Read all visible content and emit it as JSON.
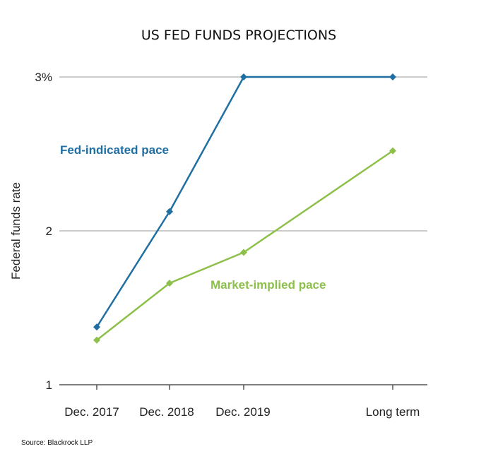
{
  "chart_data": {
    "type": "line",
    "title": "US FED FUNDS PROJECTIONS",
    "ylabel": "Federal funds rate",
    "xlabel": "",
    "categories": [
      "Dec. 2017",
      "Dec. 2018",
      "Dec. 2019",
      "Long term"
    ],
    "x_positions": [
      0,
      1,
      2,
      4
    ],
    "ylim": [
      1,
      3
    ],
    "yticks": [
      1,
      2,
      3
    ],
    "ytick_labels": [
      "1",
      "2",
      "3%"
    ],
    "grid": "horizontal",
    "legend": "inline labels",
    "series": [
      {
        "name": "Fed-indicated pace",
        "values": [
          1.375,
          2.125,
          3.0,
          3.0
        ],
        "color": "#1f6fa3"
      },
      {
        "name": "Market-implied pace",
        "values": [
          1.29,
          1.66,
          1.86,
          2.52
        ],
        "color": "#8dc04a"
      }
    ]
  },
  "source": "Source: Blackrock LLP"
}
